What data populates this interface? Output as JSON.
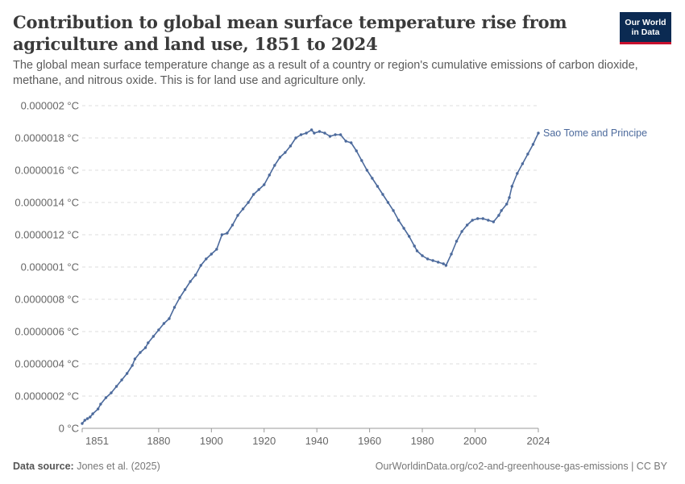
{
  "header": {
    "title": "Contribution to global mean surface temperature rise from agriculture and land use, 1851 to 2024",
    "subtitle": "The global mean surface temperature change as a result of a country or region's cumulative emissions of carbon dioxide, methane, and nitrous oxide. This is for land use and agriculture only.",
    "logo_line1": "Our World",
    "logo_line2": "in Data"
  },
  "footer": {
    "source_label": "Data source:",
    "source_text": "Jones et al. (2025)",
    "url": "OurWorldinData.org/co2-and-greenhouse-gas-emissions | CC BY"
  },
  "colors": {
    "series": "#4c6a9c",
    "grid": "#dddddd",
    "axis": "#999999",
    "text": "#666666",
    "logo_bg": "#0b2a52",
    "logo_accent": "#c8102e"
  },
  "chart_data": {
    "type": "line",
    "title": "Contribution to global mean surface temperature rise from agriculture and land use, 1851 to 2024",
    "xlabel": "",
    "ylabel": "",
    "xlim": [
      1851,
      2024
    ],
    "ylim": [
      0,
      2e-06
    ],
    "unit": "°C",
    "x_ticks": [
      {
        "value": 1851,
        "label": "1851"
      },
      {
        "value": 1880,
        "label": "1880"
      },
      {
        "value": 1900,
        "label": "1900"
      },
      {
        "value": 1920,
        "label": "1920"
      },
      {
        "value": 1940,
        "label": "1940"
      },
      {
        "value": 1960,
        "label": "1960"
      },
      {
        "value": 1980,
        "label": "1980"
      },
      {
        "value": 2000,
        "label": "2000"
      },
      {
        "value": 2024,
        "label": "2024"
      }
    ],
    "y_ticks": [
      {
        "value": 0,
        "label": "0 °C"
      },
      {
        "value": 2e-07,
        "label": "0.0000002 °C"
      },
      {
        "value": 4e-07,
        "label": "0.0000004 °C"
      },
      {
        "value": 6e-07,
        "label": "0.0000006 °C"
      },
      {
        "value": 8e-07,
        "label": "0.0000008 °C"
      },
      {
        "value": 1e-06,
        "label": "0.000001 °C"
      },
      {
        "value": 1.2e-06,
        "label": "0.0000012 °C"
      },
      {
        "value": 1.4e-06,
        "label": "0.0000014 °C"
      },
      {
        "value": 1.6e-06,
        "label": "0.0000016 °C"
      },
      {
        "value": 1.8e-06,
        "label": "0.0000018 °C"
      },
      {
        "value": 2e-06,
        "label": "0.000002 °C"
      }
    ],
    "grid": true,
    "series": [
      {
        "name": "Sao Tome and Principe",
        "points": [
          [
            1851,
            3e-08
          ],
          [
            1852,
            5e-08
          ],
          [
            1853,
            6e-08
          ],
          [
            1854,
            7e-08
          ],
          [
            1855,
            9e-08
          ],
          [
            1857,
            1.2e-07
          ],
          [
            1858,
            1.5e-07
          ],
          [
            1860,
            1.9e-07
          ],
          [
            1862,
            2.2e-07
          ],
          [
            1864,
            2.6e-07
          ],
          [
            1866,
            3e-07
          ],
          [
            1868,
            3.4e-07
          ],
          [
            1870,
            3.9e-07
          ],
          [
            1871,
            4.3e-07
          ],
          [
            1873,
            4.7e-07
          ],
          [
            1875,
            5e-07
          ],
          [
            1876,
            5.3e-07
          ],
          [
            1878,
            5.7e-07
          ],
          [
            1880,
            6.1e-07
          ],
          [
            1882,
            6.5e-07
          ],
          [
            1884,
            6.8e-07
          ],
          [
            1886,
            7.5e-07
          ],
          [
            1888,
            8.1e-07
          ],
          [
            1890,
            8.6e-07
          ],
          [
            1892,
            9.1e-07
          ],
          [
            1894,
            9.5e-07
          ],
          [
            1896,
            1.01e-06
          ],
          [
            1898,
            1.05e-06
          ],
          [
            1900,
            1.08e-06
          ],
          [
            1902,
            1.11e-06
          ],
          [
            1904,
            1.2e-06
          ],
          [
            1906,
            1.21e-06
          ],
          [
            1908,
            1.26e-06
          ],
          [
            1910,
            1.32e-06
          ],
          [
            1912,
            1.36e-06
          ],
          [
            1914,
            1.4e-06
          ],
          [
            1916,
            1.45e-06
          ],
          [
            1918,
            1.48e-06
          ],
          [
            1920,
            1.51e-06
          ],
          [
            1922,
            1.57e-06
          ],
          [
            1924,
            1.63e-06
          ],
          [
            1926,
            1.68e-06
          ],
          [
            1928,
            1.71e-06
          ],
          [
            1930,
            1.75e-06
          ],
          [
            1932,
            1.8e-06
          ],
          [
            1934,
            1.82e-06
          ],
          [
            1936,
            1.83e-06
          ],
          [
            1938,
            1.85e-06
          ],
          [
            1939,
            1.83e-06
          ],
          [
            1941,
            1.84e-06
          ],
          [
            1943,
            1.83e-06
          ],
          [
            1945,
            1.81e-06
          ],
          [
            1947,
            1.82e-06
          ],
          [
            1949,
            1.82e-06
          ],
          [
            1951,
            1.78e-06
          ],
          [
            1953,
            1.77e-06
          ],
          [
            1955,
            1.72e-06
          ],
          [
            1957,
            1.66e-06
          ],
          [
            1959,
            1.6e-06
          ],
          [
            1961,
            1.55e-06
          ],
          [
            1963,
            1.5e-06
          ],
          [
            1965,
            1.45e-06
          ],
          [
            1967,
            1.4e-06
          ],
          [
            1969,
            1.35e-06
          ],
          [
            1971,
            1.29e-06
          ],
          [
            1973,
            1.24e-06
          ],
          [
            1975,
            1.19e-06
          ],
          [
            1977,
            1.13e-06
          ],
          [
            1978,
            1.1e-06
          ],
          [
            1980,
            1.07e-06
          ],
          [
            1982,
            1.05e-06
          ],
          [
            1984,
            1.04e-06
          ],
          [
            1986,
            1.03e-06
          ],
          [
            1988,
            1.02e-06
          ],
          [
            1989,
            1.01e-06
          ],
          [
            1991,
            1.08e-06
          ],
          [
            1993,
            1.16e-06
          ],
          [
            1995,
            1.22e-06
          ],
          [
            1997,
            1.26e-06
          ],
          [
            1999,
            1.29e-06
          ],
          [
            2001,
            1.3e-06
          ],
          [
            2003,
            1.3e-06
          ],
          [
            2005,
            1.29e-06
          ],
          [
            2007,
            1.28e-06
          ],
          [
            2009,
            1.32e-06
          ],
          [
            2010,
            1.35e-06
          ],
          [
            2012,
            1.39e-06
          ],
          [
            2013,
            1.43e-06
          ],
          [
            2014,
            1.5e-06
          ],
          [
            2016,
            1.58e-06
          ],
          [
            2018,
            1.64e-06
          ],
          [
            2020,
            1.7e-06
          ],
          [
            2022,
            1.76e-06
          ],
          [
            2024,
            1.83e-06
          ]
        ]
      }
    ]
  }
}
